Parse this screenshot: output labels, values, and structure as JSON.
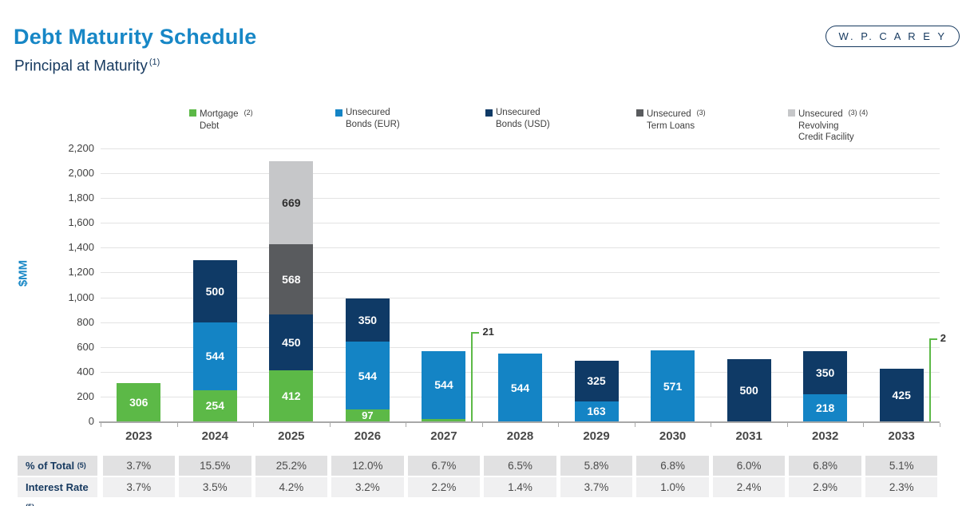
{
  "header": {
    "title": "Debt Maturity Schedule",
    "subtitle": "Principal at Maturity",
    "subtitle_footnote": "(1)",
    "logo": "W. P. C A R E Y"
  },
  "colors": {
    "title_blue": "#1787C6",
    "navy_text": "#16395F",
    "mortgage": "#5CB947",
    "bonds_eur": "#1484C5",
    "bonds_usd": "#0F3A66",
    "term_loans": "#595B5E",
    "revolver": "#C6C7C9",
    "grid": "#E3E3E3",
    "axis": "#A8A8A8",
    "callout_green": "#5CB947",
    "table_row1_bg": "#E1E1E2",
    "table_row2_bg": "#F0F0F1"
  },
  "legend": [
    {
      "label_lines": [
        "Mortgage",
        "Debt"
      ],
      "footnote": "(2)",
      "color_key": "mortgage"
    },
    {
      "label_lines": [
        "Unsecured",
        "Bonds (EUR)"
      ],
      "footnote": "",
      "color_key": "bonds_eur"
    },
    {
      "label_lines": [
        "Unsecured",
        "Bonds (USD)"
      ],
      "footnote": "",
      "color_key": "bonds_usd"
    },
    {
      "label_lines": [
        "Unsecured",
        "Term Loans"
      ],
      "footnote": "(3)",
      "color_key": "term_loans"
    },
    {
      "label_lines": [
        "Unsecured",
        "Revolving",
        "Credit Facility"
      ],
      "footnote": "(3) (4)",
      "color_key": "revolver"
    }
  ],
  "chart_data": {
    "type": "bar",
    "stacked": true,
    "title": "Debt Maturity Schedule — Principal at Maturity",
    "xlabel": "",
    "ylabel": "$MM",
    "ylim": [
      0,
      2200
    ],
    "ytick_step": 200,
    "grid": true,
    "legend_position": "top",
    "categories": [
      "2023",
      "2024",
      "2025",
      "2026",
      "2027",
      "2028",
      "2029",
      "2030",
      "2031",
      "2032",
      "2033"
    ],
    "series": [
      {
        "name": "Mortgage Debt",
        "color_key": "mortgage",
        "values": [
          306,
          254,
          412,
          97,
          21,
          0,
          0,
          0,
          0,
          0,
          2
        ]
      },
      {
        "name": "Unsecured Bonds (EUR)",
        "color_key": "bonds_eur",
        "values": [
          0,
          544,
          0,
          544,
          544,
          544,
          163,
          571,
          0,
          218,
          0
        ]
      },
      {
        "name": "Unsecured Bonds (USD)",
        "color_key": "bonds_usd",
        "values": [
          0,
          500,
          450,
          350,
          0,
          0,
          325,
          0,
          500,
          350,
          425
        ]
      },
      {
        "name": "Unsecured Term Loans",
        "color_key": "term_loans",
        "values": [
          0,
          0,
          568,
          0,
          0,
          0,
          0,
          0,
          0,
          0,
          0
        ]
      },
      {
        "name": "Unsecured Revolving Credit Facility",
        "color_key": "revolver",
        "values": [
          0,
          0,
          669,
          0,
          0,
          0,
          0,
          0,
          0,
          0,
          0
        ]
      }
    ],
    "callouts": [
      {
        "category": "2027",
        "label": "21"
      },
      {
        "category": "2033",
        "label": "2"
      }
    ]
  },
  "table": {
    "rows": [
      {
        "label": "% of Total",
        "footnote": "(5)",
        "values": [
          "3.7%",
          "15.5%",
          "25.2%",
          "12.0%",
          "6.7%",
          "6.5%",
          "5.8%",
          "6.8%",
          "6.0%",
          "6.8%",
          "5.1%"
        ]
      },
      {
        "label": "Interest Rate",
        "footnote": "(5)",
        "values": [
          "3.7%",
          "3.5%",
          "4.2%",
          "3.2%",
          "2.2%",
          "1.4%",
          "3.7%",
          "1.0%",
          "2.4%",
          "2.9%",
          "2.3%"
        ]
      }
    ]
  }
}
